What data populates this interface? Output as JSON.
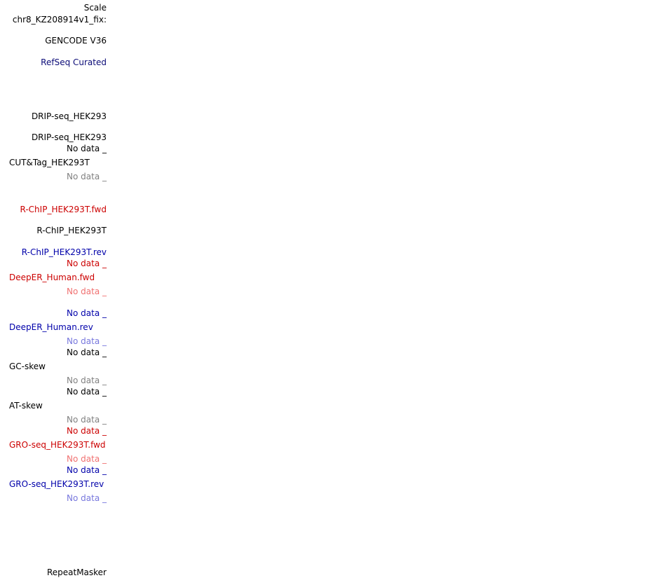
{
  "colors": {
    "black": "#000000",
    "gray": "#808080",
    "red": "#cc0000",
    "light_red": "#f07070",
    "blue": "#0000aa",
    "light_blue": "#7777dd",
    "navy": "#000080"
  },
  "labels": {
    "scale": "Scale",
    "chrom": "chr8_KZ208914v1_fix:",
    "gencode": "GENCODE V36",
    "refseq": "RefSeq Curated",
    "drip1": "DRIP-seq_HEK293",
    "drip2": "DRIP-seq_HEK293",
    "nodata_1": "No data _",
    "cuttag": "CUT&Tag_HEK293T",
    "nodata_2": "No data _",
    "rchip_fwd": "R-ChIP_HEK293T.fwd",
    "rchip": "R-ChIP_HEK293T",
    "rchip_rev": "R-ChIP_HEK293T.rev",
    "nodata_3": "No data _",
    "deeper_fwd": "DeepER_Human.fwd",
    "nodata_4": "No data _",
    "nodata_5": "No data _",
    "deeper_rev": "DeepER_Human.rev",
    "nodata_6": "No data _",
    "nodata_7": "No data _",
    "gcskew": "GC-skew",
    "nodata_8": "No data _",
    "nodata_9": "No data _",
    "atskew": "AT-skew",
    "nodata_10": "No data _",
    "nodata_11": "No data _",
    "gro_fwd": "GRO-seq_HEK293T.fwd",
    "nodata_12": "No data _",
    "nodata_13": "No data _",
    "gro_rev": "GRO-seq_HEK293T.rev",
    "nodata_14": "No data _",
    "repeatmasker": "RepeatMasker"
  }
}
